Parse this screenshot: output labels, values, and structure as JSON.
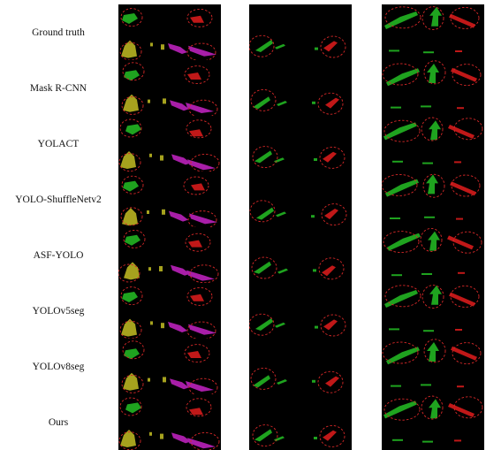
{
  "figure": {
    "rows": [
      {
        "label": "Ground truth"
      },
      {
        "label": "Mask R-CNN"
      },
      {
        "label": "YOLACT"
      },
      {
        "label": "YOLO-ShuffleNetv2"
      },
      {
        "label": "ASF-YOLO"
      },
      {
        "label": "YOLOv5seg"
      },
      {
        "label": "YOLOv8seg"
      },
      {
        "label": "Ours"
      }
    ],
    "columns": 3,
    "colors": {
      "green": "#1fa31f",
      "red": "#c01818",
      "magenta": "#a81ea8",
      "olive": "#a6a21e",
      "highlight_ring": "#d62828",
      "panel_background": "#000000"
    }
  }
}
